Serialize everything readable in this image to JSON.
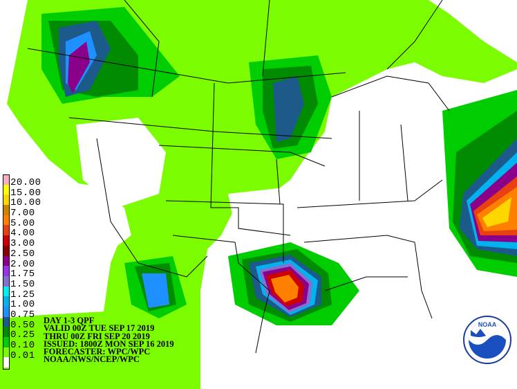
{
  "product": {
    "title": "DAY 1-3 QPF",
    "valid": "VALID 00Z TUE SEP 17 2019",
    "thru": "THRU 00Z FRI SEP 20 2019",
    "issued": "ISSUED: 1800Z MON SEP 16 2019",
    "forecaster": "FORECASTER: WPC/WPC",
    "agency": "NOAA/NWS/NCEP/WPC"
  },
  "legend": [
    {
      "label": "20.00",
      "color": "#f8b0c0"
    },
    {
      "label": "15.00",
      "color": "#ffff00"
    },
    {
      "label": "10.00",
      "color": "#ffd700"
    },
    {
      "label": "7.00",
      "color": "#cd8500"
    },
    {
      "label": "5.00",
      "color": "#ff8000"
    },
    {
      "label": "4.00",
      "color": "#e84010"
    },
    {
      "label": "3.00",
      "color": "#cc0000"
    },
    {
      "label": "2.50",
      "color": "#8b0000"
    },
    {
      "label": "2.00",
      "color": "#8b008b"
    },
    {
      "label": "1.75",
      "color": "#9a32ea"
    },
    {
      "label": "1.50",
      "color": "#8470d0"
    },
    {
      "label": "1.25",
      "color": "#00eeee"
    },
    {
      "label": "1.00",
      "color": "#00b2ee"
    },
    {
      "label": "0.75",
      "color": "#1e90ff"
    },
    {
      "label": "0.50",
      "color": "#1c5a8c"
    },
    {
      "label": "0.25",
      "color": "#008b00"
    },
    {
      "label": "0.10",
      "color": "#00cd00"
    },
    {
      "label": "0.01",
      "color": "#7cfc00"
    },
    {
      "label": "",
      "color": "#ffffff"
    }
  ],
  "logo": {
    "text": "NOAA",
    "name": "noaa-logo"
  }
}
